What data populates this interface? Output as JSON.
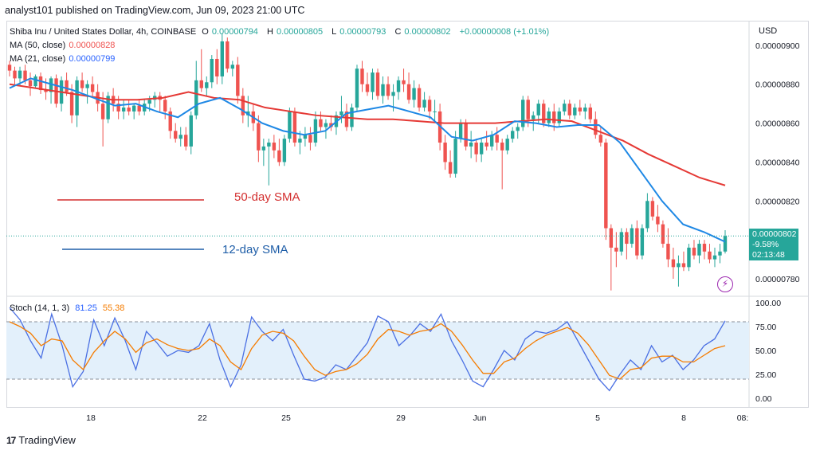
{
  "header": {
    "publisher": "analyst101 published on TradingView.com, Jun 09, 2023 21:00 UTC"
  },
  "legend": {
    "symbol": "Shiba Inu / United States Dollar, 4h, COINBASE",
    "open_label": "O",
    "open": "0.00000794",
    "high_label": "H",
    "high": "0.00000805",
    "low_label": "L",
    "low": "0.00000793",
    "close_label": "C",
    "close": "0.00000802",
    "change": "+0.00000008 (+1.01%)",
    "ma50_label": "MA (50, close)",
    "ma50_value": "0.00000828",
    "ma21_label": "MA (21, close)",
    "ma21_value": "0.00000799",
    "stoch_label": "Stoch (14, 1, 3)",
    "stoch_k": "81.25",
    "stoch_d": "55.38"
  },
  "currency": "USD",
  "annotations": {
    "sma50": "50-day SMA",
    "sma12": "12-day SMA"
  },
  "price_tag": {
    "price": "0.00000802",
    "change": "-9.58%",
    "countdown": "02:13:48"
  },
  "footer": {
    "brand": "TradingView",
    "logo": "17"
  },
  "colors": {
    "up": "#26a69a",
    "down": "#ef5350",
    "ma50": "#e53935",
    "ma21": "#1e88e5",
    "stoch_k": "#4a6fe3",
    "stoch_d": "#f57c00",
    "stoch_band": "#e3f0fb"
  },
  "chart_data": [
    {
      "type": "candlestick",
      "title": "Shiba Inu / United States Dollar, 4h, COINBASE",
      "y_ticks": [
        "0.00000900",
        "0.00000880",
        "0.00000860",
        "0.00000840",
        "0.00000820",
        "0.00000780"
      ],
      "x_ticks": [
        "18",
        "22",
        "25",
        "29",
        "Jun",
        "5",
        "8",
        "08:"
      ],
      "ylim": [
        7.71e-06,
        9.11e-06
      ],
      "candles": [
        [
          8.9e-06,
          8.92e-06,
          8.84e-06,
          8.87e-06
        ],
        [
          8.87e-06,
          8.89e-06,
          8.8e-06,
          8.83e-06
        ],
        [
          8.83e-06,
          8.89e-06,
          8.79e-06,
          8.87e-06
        ],
        [
          8.87e-06,
          8.9e-06,
          8.8e-06,
          8.82e-06
        ],
        [
          8.82e-06,
          8.86e-06,
          8.74e-06,
          8.79e-06
        ],
        [
          8.79e-06,
          8.85e-06,
          8.78e-06,
          8.84e-06
        ],
        [
          8.84e-06,
          8.86e-06,
          8.75e-06,
          8.77e-06
        ],
        [
          8.77e-06,
          8.83e-06,
          8.72e-06,
          8.76e-06
        ],
        [
          8.76e-06,
          8.84e-06,
          8.7e-06,
          8.83e-06
        ],
        [
          8.83e-06,
          8.85e-06,
          8.68e-06,
          8.7e-06
        ],
        [
          8.7e-06,
          8.84e-06,
          8.66e-06,
          8.82e-06
        ],
        [
          8.82e-06,
          8.86e-06,
          8.74e-06,
          8.76e-06
        ],
        [
          8.76e-06,
          8.8e-06,
          8.6e-06,
          8.64e-06
        ],
        [
          8.64e-06,
          8.84e-06,
          8.58e-06,
          8.82e-06
        ],
        [
          8.82e-06,
          8.86e-06,
          8.76e-06,
          8.78e-06
        ],
        [
          8.78e-06,
          8.82e-06,
          8.7e-06,
          8.8e-06
        ],
        [
          8.8e-06,
          8.84e-06,
          8.74e-06,
          8.76e-06
        ],
        [
          8.76e-06,
          8.8e-06,
          8.66e-06,
          8.7e-06
        ],
        [
          8.7e-06,
          8.76e-06,
          8.48e-06,
          8.62e-06
        ],
        [
          8.62e-06,
          8.76e-06,
          8.6e-06,
          8.74e-06
        ],
        [
          8.74e-06,
          8.78e-06,
          8.66e-06,
          8.7e-06
        ],
        [
          8.7e-06,
          8.74e-06,
          8.62e-06,
          8.66e-06
        ],
        [
          8.66e-06,
          8.72e-06,
          8.62e-06,
          8.68e-06
        ],
        [
          8.68e-06,
          8.72e-06,
          8.64e-06,
          8.66e-06
        ],
        [
          8.66e-06,
          8.7e-06,
          8.62e-06,
          8.69e-06
        ],
        [
          8.69e-06,
          8.72e-06,
          8.64e-06,
          8.66e-06
        ],
        [
          8.66e-06,
          8.72e-06,
          8.64e-06,
          8.7e-06
        ],
        [
          8.7e-06,
          8.74e-06,
          8.66e-06,
          8.72e-06
        ],
        [
          8.72e-06,
          8.76e-06,
          8.68e-06,
          8.74e-06
        ],
        [
          8.74e-06,
          8.76e-06,
          8.66e-06,
          8.72e-06
        ],
        [
          8.72e-06,
          8.74e-06,
          8.62e-06,
          8.66e-06
        ],
        [
          8.66e-06,
          8.68e-06,
          8.52e-06,
          8.56e-06
        ],
        [
          8.56e-06,
          8.6e-06,
          8.5e-06,
          8.52e-06
        ],
        [
          8.52e-06,
          8.58e-06,
          8.48e-06,
          8.54e-06
        ],
        [
          8.54e-06,
          8.58e-06,
          8.46e-06,
          8.48e-06
        ],
        [
          8.48e-06,
          8.66e-06,
          8.44e-06,
          8.64e-06
        ],
        [
          8.64e-06,
          8.92e-06,
          8.62e-06,
          8.82e-06
        ],
        [
          8.82e-06,
          8.98e-06,
          8.76e-06,
          8.78e-06
        ],
        [
          8.78e-06,
          8.84e-06,
          8.74e-06,
          8.81e-06
        ],
        [
          8.81e-06,
          8.95e-06,
          8.78e-06,
          8.93e-06
        ],
        [
          8.93e-06,
          8.98e-06,
          8.8e-06,
          8.84e-06
        ],
        [
          8.84e-06,
          9.06e-06,
          8.8e-06,
          9.02e-06
        ],
        [
          9.02e-06,
          9.04e-06,
          8.86e-06,
          8.88e-06
        ],
        [
          8.88e-06,
          8.92e-06,
          8.84e-06,
          8.9e-06
        ],
        [
          8.9e-06,
          8.94e-06,
          8.7e-06,
          8.74e-06
        ],
        [
          8.74e-06,
          8.78e-06,
          8.6e-06,
          8.64e-06
        ],
        [
          8.64e-06,
          8.74e-06,
          8.58e-06,
          8.66e-06
        ],
        [
          8.66e-06,
          8.7e-06,
          8.56e-06,
          8.6e-06
        ],
        [
          8.6e-06,
          8.64e-06,
          8.4e-06,
          8.46e-06
        ],
        [
          8.46e-06,
          8.52e-06,
          8.38e-06,
          8.48e-06
        ],
        [
          8.48e-06,
          8.52e-06,
          8.28e-06,
          8.5e-06
        ],
        [
          8.5e-06,
          8.54e-06,
          8.42e-06,
          8.46e-06
        ],
        [
          8.46e-06,
          8.52e-06,
          8.38e-06,
          8.4e-06
        ],
        [
          8.4e-06,
          8.54e-06,
          8.38e-06,
          8.52e-06
        ],
        [
          8.52e-06,
          8.68e-06,
          8.5e-06,
          8.66e-06
        ],
        [
          8.66e-06,
          8.68e-06,
          8.48e-06,
          8.5e-06
        ],
        [
          8.5e-06,
          8.56e-06,
          8.44e-06,
          8.52e-06
        ],
        [
          8.52e-06,
          8.58e-06,
          8.48e-06,
          8.54e-06
        ],
        [
          8.54e-06,
          8.58e-06,
          8.46e-06,
          8.5e-06
        ],
        [
          8.5e-06,
          8.66e-06,
          8.48e-06,
          8.62e-06
        ],
        [
          8.62e-06,
          8.66e-06,
          8.56e-06,
          8.58e-06
        ],
        [
          8.58e-06,
          8.62e-06,
          8.52e-06,
          8.6e-06
        ],
        [
          8.6e-06,
          8.64e-06,
          8.56e-06,
          8.58e-06
        ],
        [
          8.58e-06,
          8.66e-06,
          8.54e-06,
          8.64e-06
        ],
        [
          8.64e-06,
          8.74e-06,
          8.6e-06,
          8.66e-06
        ],
        [
          8.66e-06,
          8.7e-06,
          8.56e-06,
          8.58e-06
        ],
        [
          8.58e-06,
          8.7e-06,
          8.56e-06,
          8.68e-06
        ],
        [
          8.68e-06,
          8.9e-06,
          8.66e-06,
          8.88e-06
        ],
        [
          8.88e-06,
          8.92e-06,
          8.76e-06,
          8.8e-06
        ],
        [
          8.8e-06,
          8.86e-06,
          8.74e-06,
          8.76e-06
        ],
        [
          8.76e-06,
          8.88e-06,
          8.72e-06,
          8.86e-06
        ],
        [
          8.86e-06,
          8.88e-06,
          8.72e-06,
          8.74e-06
        ],
        [
          8.74e-06,
          8.84e-06,
          8.7e-06,
          8.8e-06
        ],
        [
          8.8e-06,
          8.84e-06,
          8.72e-06,
          8.74e-06
        ],
        [
          8.74e-06,
          8.8e-06,
          8.66e-06,
          8.76e-06
        ],
        [
          8.76e-06,
          8.84e-06,
          8.72e-06,
          8.82e-06
        ],
        [
          8.82e-06,
          8.88e-06,
          8.76e-06,
          8.8e-06
        ],
        [
          8.8e-06,
          8.86e-06,
          8.7e-06,
          8.72e-06
        ],
        [
          8.72e-06,
          8.82e-06,
          8.68e-06,
          8.78e-06
        ],
        [
          8.78e-06,
          8.8e-06,
          8.66e-06,
          8.68e-06
        ],
        [
          8.68e-06,
          8.76e-06,
          8.66e-06,
          8.72e-06
        ],
        [
          8.72e-06,
          8.74e-06,
          8.62e-06,
          8.66e-06
        ],
        [
          8.66e-06,
          8.72e-06,
          8.6e-06,
          8.66e-06
        ],
        [
          8.66e-06,
          8.7e-06,
          8.46e-06,
          8.5e-06
        ],
        [
          8.5e-06,
          8.54e-06,
          8.36e-06,
          8.4e-06
        ],
        [
          8.4e-06,
          8.46e-06,
          8.32e-06,
          8.34e-06
        ],
        [
          8.34e-06,
          8.56e-06,
          8.32e-06,
          8.52e-06
        ],
        [
          8.52e-06,
          8.62e-06,
          8.5e-06,
          8.6e-06
        ],
        [
          8.6e-06,
          8.62e-06,
          8.46e-06,
          8.48e-06
        ],
        [
          8.48e-06,
          8.56e-06,
          8.42e-06,
          8.5e-06
        ],
        [
          8.5e-06,
          8.52e-06,
          8.4e-06,
          8.44e-06
        ],
        [
          8.44e-06,
          8.52e-06,
          8.4e-06,
          8.5e-06
        ],
        [
          8.5e-06,
          8.56e-06,
          8.46e-06,
          8.48e-06
        ],
        [
          8.48e-06,
          8.56e-06,
          8.46e-06,
          8.54e-06
        ],
        [
          8.54e-06,
          8.58e-06,
          8.46e-06,
          8.5e-06
        ],
        [
          8.5e-06,
          8.52e-06,
          8.26e-06,
          8.46e-06
        ],
        [
          8.46e-06,
          8.54e-06,
          8.44e-06,
          8.52e-06
        ],
        [
          8.52e-06,
          8.58e-06,
          8.5e-06,
          8.56e-06
        ],
        [
          8.56e-06,
          8.6e-06,
          8.52e-06,
          8.58e-06
        ],
        [
          8.58e-06,
          8.74e-06,
          8.56e-06,
          8.72e-06
        ],
        [
          8.72e-06,
          8.74e-06,
          8.58e-06,
          8.62e-06
        ],
        [
          8.62e-06,
          8.66e-06,
          8.56e-06,
          8.64e-06
        ],
        [
          8.64e-06,
          8.72e-06,
          8.6e-06,
          8.7e-06
        ],
        [
          8.7e-06,
          8.72e-06,
          8.58e-06,
          8.6e-06
        ],
        [
          8.6e-06,
          8.68e-06,
          8.58e-06,
          8.66e-06
        ],
        [
          8.66e-06,
          8.7e-06,
          8.56e-06,
          8.6e-06
        ],
        [
          8.6e-06,
          8.68e-06,
          8.58e-06,
          8.66e-06
        ],
        [
          8.66e-06,
          8.72e-06,
          8.64e-06,
          8.7e-06
        ],
        [
          8.7e-06,
          8.72e-06,
          8.62e-06,
          8.64e-06
        ],
        [
          8.64e-06,
          8.7e-06,
          8.62e-06,
          8.68e-06
        ],
        [
          8.68e-06,
          8.72e-06,
          8.64e-06,
          8.66e-06
        ],
        [
          8.66e-06,
          8.7e-06,
          8.62e-06,
          8.68e-06
        ],
        [
          8.68e-06,
          8.7e-06,
          8.6e-06,
          8.62e-06
        ],
        [
          8.62e-06,
          8.66e-06,
          8.52e-06,
          8.54e-06
        ],
        [
          8.54e-06,
          8.58e-06,
          8.48e-06,
          8.5e-06
        ],
        [
          8.5e-06,
          8.52e-06,
          8e-06,
          8.06e-06
        ],
        [
          8.06e-06,
          8.08e-06,
          7.74e-06,
          7.96e-06
        ],
        [
          7.96e-06,
          8.04e-06,
          7.86e-06,
          7.94e-06
        ],
        [
          7.94e-06,
          8.06e-06,
          7.92e-06,
          8.04e-06
        ],
        [
          8.04e-06,
          8.06e-06,
          7.9e-06,
          7.98e-06
        ],
        [
          7.98e-06,
          8.08e-06,
          7.96e-06,
          8.06e-06
        ],
        [
          8.06e-06,
          8.1e-06,
          7.9e-06,
          7.92e-06
        ],
        [
          7.92e-06,
          8.08e-06,
          7.9e-06,
          8.06e-06
        ],
        [
          8.06e-06,
          8.24e-06,
          8.04e-06,
          8.2e-06
        ],
        [
          8.2e-06,
          8.22e-06,
          8.1e-06,
          8.12e-06
        ],
        [
          8.12e-06,
          8.18e-06,
          8.04e-06,
          8.08e-06
        ],
        [
          8.08e-06,
          8.1e-06,
          7.96e-06,
          7.98e-06
        ],
        [
          7.98e-06,
          8.06e-06,
          7.86e-06,
          7.9e-06
        ],
        [
          7.9e-06,
          7.96e-06,
          7.8e-06,
          7.86e-06
        ],
        [
          7.86e-06,
          7.92e-06,
          7.76e-06,
          7.88e-06
        ],
        [
          7.88e-06,
          7.94e-06,
          7.84e-06,
          7.86e-06
        ],
        [
          7.86e-06,
          7.98e-06,
          7.84e-06,
          7.96e-06
        ],
        [
          7.96e-06,
          8e-06,
          7.9e-06,
          7.92e-06
        ],
        [
          7.92e-06,
          8e-06,
          7.88e-06,
          7.98e-06
        ],
        [
          7.98e-06,
          8e-06,
          7.9e-06,
          7.94e-06
        ],
        [
          7.94e-06,
          7.98e-06,
          7.88e-06,
          7.9e-06
        ],
        [
          7.9e-06,
          7.96e-06,
          7.86e-06,
          7.92e-06
        ],
        [
          7.92e-06,
          7.98e-06,
          7.88e-06,
          7.94e-06
        ],
        [
          7.94e-06,
          8.05e-06,
          7.93e-06,
          8.02e-06
        ]
      ],
      "ma50": [
        8.8e-06,
        8.78e-06,
        8.76e-06,
        8.74e-06,
        8.72e-06,
        8.72e-06,
        8.73e-06,
        8.76e-06,
        8.73e-06,
        8.72e-06,
        8.68e-06,
        8.66e-06,
        8.64e-06,
        8.63e-06,
        8.62e-06,
        8.62e-06,
        8.61e-06,
        8.6e-06,
        8.6e-06,
        8.6e-06,
        8.61e-06,
        8.62e-06,
        8.61e-06,
        8.56e-06,
        8.51e-06,
        8.44e-06,
        8.38e-06,
        8.32e-06,
        8.28e-06
      ],
      "ma21": [
        8.78e-06,
        8.83e-06,
        8.8e-06,
        8.77e-06,
        8.73e-06,
        8.69e-06,
        8.7e-06,
        8.66e-06,
        8.63e-06,
        8.7e-06,
        8.73e-06,
        8.67e-06,
        8.6e-06,
        8.56e-06,
        8.54e-06,
        8.56e-06,
        8.65e-06,
        8.67e-06,
        8.69e-06,
        8.66e-06,
        8.63e-06,
        8.53e-06,
        8.51e-06,
        8.54e-06,
        8.61e-06,
        8.6e-06,
        8.58e-06,
        8.59e-06,
        8.59e-06,
        8.5e-06,
        8.35e-06,
        8.2e-06,
        8.08e-06,
        8.04e-06,
        7.99e-06
      ],
      "series": [
        {
          "name": "MA (50, close)",
          "last": 8.28e-06
        },
        {
          "name": "MA (21, close)",
          "last": 7.99e-06
        }
      ]
    },
    {
      "type": "line",
      "title": "Stoch (14, 1, 3)",
      "ylim": [
        0,
        100
      ],
      "y_ticks": [
        "100.00",
        "75.00",
        "50.00",
        "25.00",
        "0.00"
      ],
      "band": [
        20,
        80
      ],
      "series": [
        {
          "name": "%K",
          "last": 81.25,
          "values": [
            95,
            82,
            60,
            42,
            88,
            55,
            12,
            28,
            82,
            55,
            84,
            60,
            30,
            70,
            58,
            44,
            50,
            48,
            55,
            78,
            40,
            12,
            35,
            85,
            70,
            60,
            72,
            45,
            20,
            18,
            22,
            35,
            30,
            44,
            58,
            86,
            80,
            55,
            65,
            78,
            70,
            88,
            60,
            40,
            18,
            12,
            30,
            50,
            40,
            62,
            70,
            68,
            72,
            80,
            60,
            40,
            20,
            8,
            25,
            40,
            30,
            55,
            38,
            45,
            30,
            40,
            55,
            62,
            81
          ]
        },
        {
          "name": "%D",
          "last": 55.38,
          "values": [
            80,
            75,
            68,
            55,
            62,
            60,
            40,
            30,
            48,
            60,
            70,
            62,
            48,
            58,
            62,
            56,
            52,
            50,
            52,
            62,
            55,
            38,
            30,
            52,
            66,
            70,
            68,
            60,
            44,
            30,
            24,
            28,
            30,
            36,
            46,
            62,
            72,
            70,
            66,
            70,
            72,
            78,
            70,
            56,
            40,
            26,
            26,
            38,
            42,
            52,
            60,
            66,
            70,
            74,
            68,
            56,
            40,
            24,
            20,
            30,
            32,
            42,
            44,
            44,
            38,
            38,
            45,
            52,
            55
          ]
        }
      ]
    }
  ]
}
